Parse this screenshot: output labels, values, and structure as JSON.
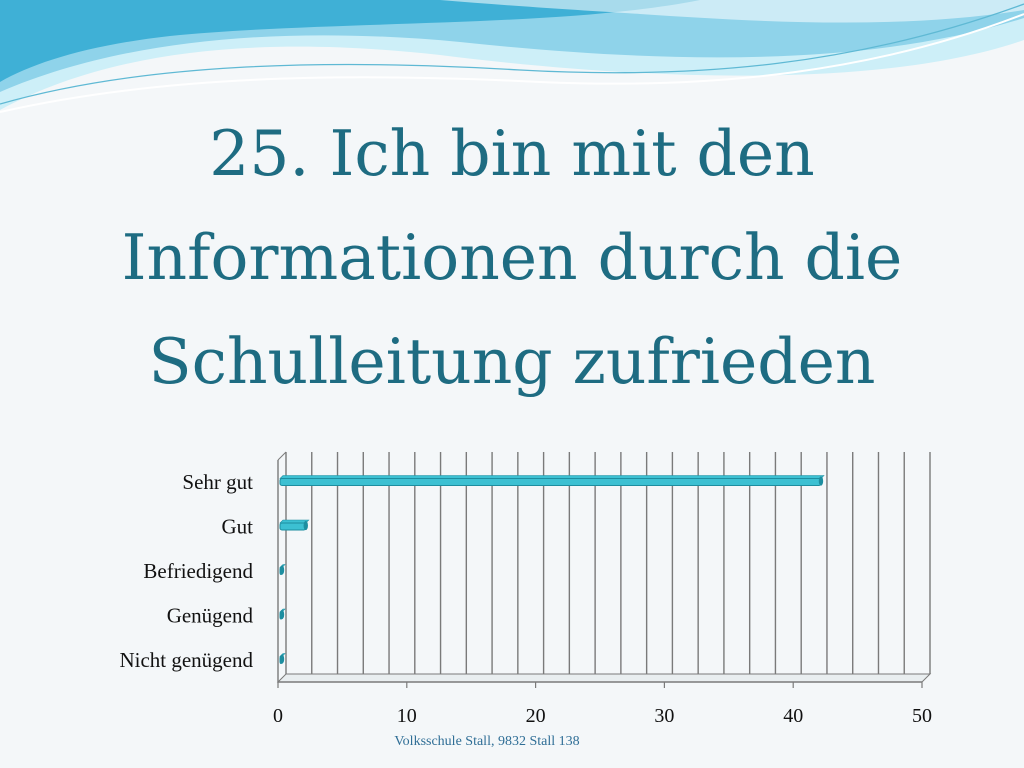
{
  "slide": {
    "title_lines": [
      "25. Ich bin mit den",
      "Informationen durch die",
      "Schulleitung zufrieden"
    ],
    "footer": "Volksschule Stall, 9832 Stall 138"
  },
  "colors": {
    "title": "#1e6c82",
    "bar": "#3cc0d2",
    "bar_dark": "#1d8ea0",
    "footer": "#2f6e96",
    "wave_light": "#9fd9ea",
    "wave_dark": "#4ab5d6"
  },
  "chart_data": {
    "type": "bar",
    "orientation": "horizontal",
    "categories": [
      "Sehr gut",
      "Gut",
      "Befriedigend",
      "Genügend",
      "Nicht genügend"
    ],
    "values": [
      42,
      2,
      0,
      0,
      0
    ],
    "xlim": [
      0,
      50
    ],
    "xticks": [
      0,
      10,
      20,
      30,
      40,
      50
    ],
    "grid": true,
    "legend": "none"
  }
}
